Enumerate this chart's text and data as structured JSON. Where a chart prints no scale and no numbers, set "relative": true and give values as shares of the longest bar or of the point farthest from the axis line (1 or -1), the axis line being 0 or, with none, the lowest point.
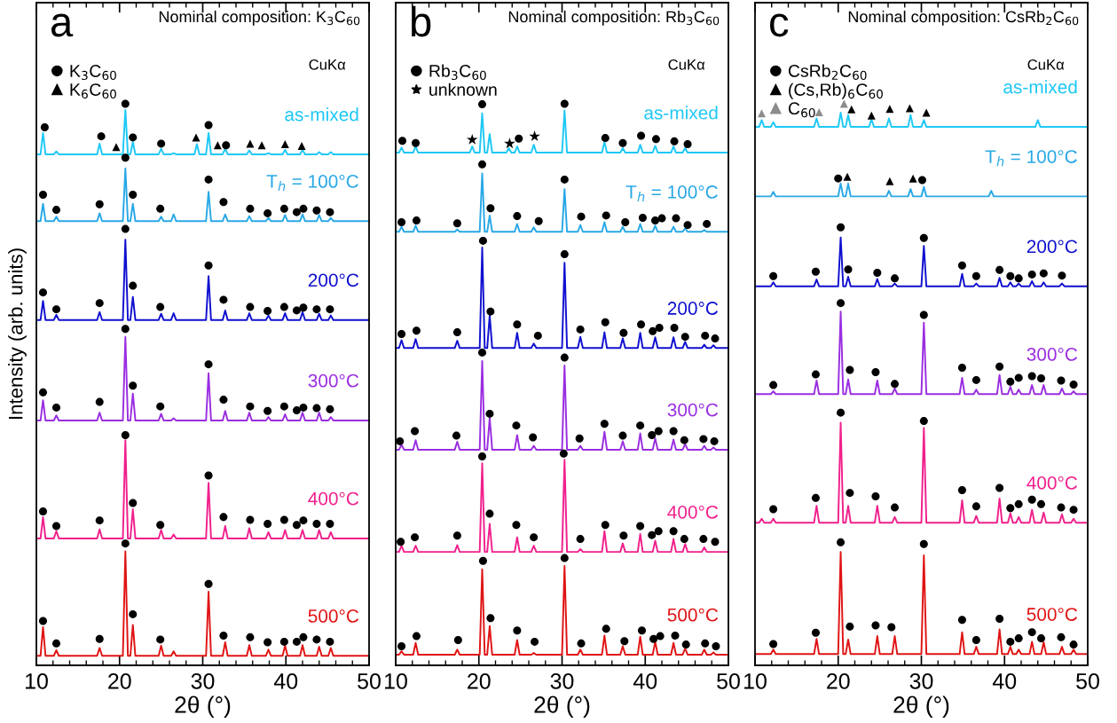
{
  "chart_data": [
    {
      "type": "line",
      "title": "Nominal composition: K$_{3}$C$_{60}$",
      "xlabel": "2θ (°)",
      "ylabel": "Intensity (arb. units)",
      "annotations": [
        "a",
        "CuKα"
      ],
      "relative": true,
      "xlim": [
        10,
        50
      ],
      "xticks": [
        10,
        20,
        30,
        40,
        50
      ],
      "legend": "top left",
      "x": [
        10,
        10.5,
        10.8,
        11.1,
        12.1,
        12.4,
        12.7,
        17.3,
        17.6,
        17.9,
        20.4,
        20.7,
        21.0,
        21.3,
        21.6,
        21.9,
        24.7,
        25.0,
        25.3,
        26.2,
        26.5,
        26.8,
        29.0,
        29.3,
        29.6,
        30.4,
        30.7,
        31.0,
        32.4,
        32.7,
        33.0,
        35.3,
        35.6,
        35.9,
        37.6,
        37.9,
        38.2,
        39.6,
        39.9,
        40.2,
        41.7,
        42.0,
        42.3,
        43.7,
        44.0,
        44.3,
        45.1,
        45.4,
        45.7,
        50
      ],
      "series": [
        {
          "name": "as-mixed",
          "color": "#1ec8f5",
          "values": [
            0.91,
            0.91,
            0.948,
            0.91,
            0.91,
            0.915,
            0.91,
            0.91,
            0.929,
            0.91,
            0.91,
            0.989,
            0.91,
            0.91,
            0.932,
            0.91,
            0.91,
            0.92,
            0.91,
            0.91,
            0.912,
            0.91,
            0.91,
            0.928,
            0.91,
            0.91,
            0.948,
            0.91,
            0.91,
            0.92,
            0.91,
            0.91,
            0.917,
            0.91,
            0.91,
            0.912,
            0.91,
            0.91,
            0.918,
            0.91,
            0.91,
            0.918,
            0.91,
            0.91,
            0.914,
            0.91,
            0.91,
            0.914,
            0.91,
            0.91
          ]
        },
        {
          "name": "T$_{h}$ = 100°C",
          "color": "#28a8e6",
          "values": [
            0.791,
            0.791,
            0.822,
            0.791,
            0.791,
            0.799,
            0.791,
            0.791,
            0.805,
            0.791,
            0.791,
            0.885,
            0.791,
            0.791,
            0.822,
            0.791,
            0.791,
            0.799,
            0.791,
            0.791,
            0.803,
            0.791,
            0.791,
            0.791,
            0.791,
            0.791,
            0.843,
            0.791,
            0.791,
            0.803,
            0.791,
            0.791,
            0.8,
            0.791,
            0.791,
            0.797,
            0.791,
            0.791,
            0.802,
            0.791,
            0.791,
            0.803,
            0.791,
            0.791,
            0.802,
            0.791,
            0.791,
            0.797,
            0.791,
            0.791
          ]
        },
        {
          "name": "200°C",
          "color": "#1010d0",
          "values": [
            0.615,
            0.615,
            0.649,
            0.615,
            0.615,
            0.624,
            0.615,
            0.615,
            0.629,
            0.615,
            0.615,
            0.758,
            0.615,
            0.615,
            0.656,
            0.615,
            0.615,
            0.626,
            0.615,
            0.615,
            0.627,
            0.615,
            0.615,
            0.615,
            0.615,
            0.615,
            0.693,
            0.615,
            0.615,
            0.632,
            0.615,
            0.615,
            0.627,
            0.615,
            0.615,
            0.623,
            0.615,
            0.615,
            0.627,
            0.615,
            0.615,
            0.629,
            0.615,
            0.615,
            0.626,
            0.615,
            0.615,
            0.623,
            0.615,
            0.615
          ]
        },
        {
          "name": "300°C",
          "color": "#9a2ee0",
          "values": [
            0.436,
            0.436,
            0.472,
            0.436,
            0.436,
            0.445,
            0.436,
            0.436,
            0.45,
            0.436,
            0.436,
            0.585,
            0.436,
            0.436,
            0.484,
            0.436,
            0.436,
            0.448,
            0.436,
            0.436,
            0.44,
            0.436,
            0.436,
            0.436,
            0.436,
            0.436,
            0.52,
            0.436,
            0.436,
            0.453,
            0.436,
            0.436,
            0.45,
            0.436,
            0.436,
            0.442,
            0.436,
            0.436,
            0.447,
            0.436,
            0.436,
            0.45,
            0.436,
            0.436,
            0.45,
            0.436,
            0.436,
            0.442,
            0.436,
            0.436
          ]
        },
        {
          "name": "400°C",
          "color": "#f0208c",
          "values": [
            0.226,
            0.226,
            0.264,
            0.226,
            0.226,
            0.239,
            0.226,
            0.226,
            0.242,
            0.226,
            0.226,
            0.401,
            0.226,
            0.226,
            0.278,
            0.226,
            0.226,
            0.241,
            0.226,
            0.226,
            0.233,
            0.226,
            0.226,
            0.226,
            0.226,
            0.226,
            0.325,
            0.226,
            0.226,
            0.248,
            0.226,
            0.226,
            0.244,
            0.226,
            0.226,
            0.237,
            0.226,
            0.226,
            0.241,
            0.226,
            0.226,
            0.241,
            0.226,
            0.226,
            0.241,
            0.226,
            0.226,
            0.237,
            0.226,
            0.226
          ]
        },
        {
          "name": "500°C",
          "color": "#e01414",
          "values": [
            0.017,
            0.017,
            0.068,
            0.017,
            0.017,
            0.027,
            0.017,
            0.017,
            0.031,
            0.017,
            0.017,
            0.203,
            0.017,
            0.017,
            0.072,
            0.017,
            0.017,
            0.035,
            0.017,
            0.017,
            0.025,
            0.017,
            0.017,
            0.017,
            0.017,
            0.017,
            0.131,
            0.017,
            0.017,
            0.041,
            0.017,
            0.017,
            0.036,
            0.017,
            0.017,
            0.028,
            0.017,
            0.017,
            0.035,
            0.017,
            0.017,
            0.036,
            0.017,
            0.017,
            0.033,
            0.017,
            0.017,
            0.031,
            0.017,
            0.017
          ]
        },
        {
          "type": "scatter",
          "name": "K$_{3}$C$_{60}$",
          "color": "#000000",
          "marker": "circle",
          "x": [
            11.0,
            17.8,
            20.7,
            21.6,
            25.0,
            30.7,
            32.8,
            10.8,
            12.4,
            17.6,
            20.7,
            21.6,
            24.9,
            30.7,
            32.5,
            35.7,
            37.8,
            39.8,
            41.3,
            42.1,
            43.7,
            45.3,
            10.8,
            12.4,
            17.6,
            20.7,
            21.6,
            24.9,
            30.7,
            32.5,
            35.7,
            37.8,
            39.8,
            41.3,
            42.1,
            43.7,
            45.3,
            10.8,
            12.4,
            17.6,
            20.7,
            21.6,
            24.9,
            30.7,
            32.5,
            35.7,
            37.8,
            39.8,
            41.3,
            42.1,
            43.7,
            45.3,
            10.8,
            12.4,
            17.6,
            20.7,
            21.6,
            24.9,
            30.7,
            32.5,
            35.7,
            37.8,
            39.8,
            41.3,
            42.1,
            43.7,
            45.3,
            10.8,
            12.4,
            17.6,
            20.7,
            21.6,
            24.9,
            30.7,
            32.5,
            35.7,
            37.8,
            39.8,
            41.3,
            42.1,
            43.7,
            45.3
          ],
          "values": [
            0.958,
            0.942,
            1.0,
            0.94,
            0.929,
            0.962,
            0.926,
            0.838,
            0.811,
            0.821,
            0.904,
            0.838,
            0.813,
            0.865,
            0.825,
            0.813,
            0.805,
            0.813,
            0.807,
            0.813,
            0.81,
            0.807,
            0.664,
            0.634,
            0.645,
            0.777,
            0.676,
            0.638,
            0.712,
            0.651,
            0.638,
            0.631,
            0.638,
            0.632,
            0.637,
            0.634,
            0.634,
            0.486,
            0.459,
            0.469,
            0.599,
            0.498,
            0.461,
            0.536,
            0.473,
            0.461,
            0.453,
            0.461,
            0.454,
            0.459,
            0.458,
            0.456,
            0.274,
            0.248,
            0.258,
            0.41,
            0.289,
            0.25,
            0.338,
            0.264,
            0.259,
            0.252,
            0.259,
            0.25,
            0.258,
            0.252,
            0.252,
            0.079,
            0.039,
            0.047,
            0.217,
            0.091,
            0.046,
            0.145,
            0.053,
            0.05,
            0.041,
            0.042,
            0.042,
            0.05,
            0.046,
            0.042
          ]
        },
        {
          "type": "scatter",
          "name": "K$_{6}$C$_{60}$",
          "color": "#000000",
          "marker": "triangle",
          "x": [
            19.6,
            29.2,
            31.8,
            35.7,
            37.1,
            39.9,
            41.9
          ],
          "values": [
            0.923,
            0.94,
            0.926,
            0.929,
            0.926,
            0.928,
            0.925
          ]
        }
      ]
    },
    {
      "type": "line",
      "title": "Nominal composition: Rb$_{3}$C$_{60}$",
      "xlabel": "2θ (°)",
      "annotations": [
        "b",
        "CuKα"
      ],
      "relative": true,
      "xlim": [
        10,
        50
      ],
      "xticks": [
        10,
        20,
        30,
        40,
        50
      ],
      "legend": "top left",
      "x": [
        10,
        10.4,
        10.7,
        11.0,
        12.1,
        12.4,
        12.7,
        17.1,
        17.4,
        17.7,
        18.9,
        19.2,
        19.5,
        20.1,
        20.4,
        20.7,
        21.0,
        21.3,
        21.6,
        23.3,
        23.6,
        23.9,
        24.3,
        24.6,
        24.9,
        26.3,
        26.6,
        26.9,
        30.0,
        30.3,
        30.6,
        31.9,
        32.2,
        32.5,
        34.8,
        35.1,
        35.4,
        37.0,
        37.3,
        37.6,
        39.1,
        39.4,
        39.7,
        40.9,
        41.2,
        41.5,
        43.1,
        43.4,
        43.7,
        44.5,
        44.8,
        45.1,
        46.8,
        47.1,
        47.4,
        47.9,
        48.2,
        48.5,
        50
      ],
      "series": [
        {
          "name": "as-mixed",
          "color": "#1ec8f5",
          "values": [
            0.913,
            0.913,
            0.922,
            0.913,
            0.913,
            0.924,
            0.913,
            0.913,
            0.913,
            0.913,
            0.913,
            0.924,
            0.913,
            0.913,
            0.983,
            0.913,
            0.913,
            0.946,
            0.913,
            0.913,
            0.921,
            0.913,
            0.913,
            0.924,
            0.913,
            0.913,
            0.927,
            0.913,
            0.913,
            0.988,
            0.913,
            0.913,
            0.913,
            0.913,
            0.913,
            0.932,
            0.913,
            0.913,
            0.921,
            0.913,
            0.913,
            0.927,
            0.913,
            0.913,
            0.925,
            0.913,
            0.913,
            0.924,
            0.913,
            0.913,
            0.921,
            0.913,
            0.913,
            0.913,
            0.913,
            0.913,
            0.913,
            0.913,
            0.913
          ]
        },
        {
          "name": "T$_{h}$ = 100°C",
          "color": "#28a8e6",
          "values": [
            0.772,
            0.772,
            0.781,
            0.772,
            0.772,
            0.783,
            0.772,
            0.772,
            0.776,
            0.772,
            0.772,
            0.772,
            0.772,
            0.772,
            0.876,
            0.772,
            0.772,
            0.801,
            0.772,
            0.772,
            0.772,
            0.772,
            0.772,
            0.786,
            0.772,
            0.772,
            0.78,
            0.772,
            0.772,
            0.848,
            0.772,
            0.772,
            0.784,
            0.772,
            0.772,
            0.789,
            0.772,
            0.772,
            0.781,
            0.772,
            0.772,
            0.786,
            0.772,
            0.772,
            0.783,
            0.772,
            0.772,
            0.781,
            0.772,
            0.772,
            0.778,
            0.772,
            0.772,
            0.775,
            0.772,
            0.772,
            0.772,
            0.772,
            0.772
          ]
        },
        {
          "name": "200°C",
          "color": "#1010d0",
          "values": [
            0.565,
            0.565,
            0.579,
            0.565,
            0.565,
            0.581,
            0.565,
            0.565,
            0.578,
            0.565,
            0.565,
            0.565,
            0.565,
            0.565,
            0.744,
            0.565,
            0.565,
            0.623,
            0.565,
            0.565,
            0.565,
            0.565,
            0.565,
            0.592,
            0.565,
            0.565,
            0.573,
            0.565,
            0.565,
            0.717,
            0.565,
            0.565,
            0.585,
            0.565,
            0.565,
            0.593,
            0.565,
            0.565,
            0.582,
            0.565,
            0.565,
            0.592,
            0.565,
            0.565,
            0.584,
            0.565,
            0.565,
            0.584,
            0.565,
            0.565,
            0.576,
            0.565,
            0.565,
            0.571,
            0.565,
            0.565,
            0.57,
            0.565,
            0.565
          ]
        },
        {
          "name": "300°C",
          "color": "#9a2ee0",
          "values": [
            0.384,
            0.384,
            0.393,
            0.384,
            0.384,
            0.401,
            0.384,
            0.384,
            0.398,
            0.384,
            0.384,
            0.384,
            0.384,
            0.384,
            0.542,
            0.384,
            0.384,
            0.441,
            0.384,
            0.384,
            0.384,
            0.384,
            0.384,
            0.41,
            0.384,
            0.384,
            0.391,
            0.384,
            0.384,
            0.534,
            0.384,
            0.384,
            0.391,
            0.384,
            0.384,
            0.416,
            0.384,
            0.384,
            0.399,
            0.384,
            0.384,
            0.413,
            0.384,
            0.384,
            0.404,
            0.384,
            0.384,
            0.402,
            0.384,
            0.384,
            0.394,
            0.384,
            0.384,
            0.391,
            0.384,
            0.384,
            0.388,
            0.384,
            0.384
          ]
        },
        {
          "name": "400°C",
          "color": "#f0208c",
          "values": [
            0.202,
            0.202,
            0.213,
            0.202,
            0.202,
            0.213,
            0.202,
            0.202,
            0.214,
            0.202,
            0.202,
            0.202,
            0.202,
            0.202,
            0.36,
            0.202,
            0.202,
            0.252,
            0.202,
            0.202,
            0.202,
            0.202,
            0.202,
            0.228,
            0.202,
            0.202,
            0.213,
            0.202,
            0.202,
            0.366,
            0.202,
            0.202,
            0.207,
            0.202,
            0.202,
            0.239,
            0.202,
            0.202,
            0.217,
            0.202,
            0.202,
            0.234,
            0.202,
            0.202,
            0.222,
            0.202,
            0.202,
            0.225,
            0.202,
            0.202,
            0.216,
            0.202,
            0.202,
            0.21,
            0.202,
            0.202,
            0.202,
            0.202,
            0.202
          ]
        },
        {
          "name": "500°C",
          "color": "#e01414",
          "values": [
            0.019,
            0.019,
            0.025,
            0.019,
            0.019,
            0.04,
            0.019,
            0.019,
            0.028,
            0.019,
            0.019,
            0.019,
            0.019,
            0.019,
            0.171,
            0.019,
            0.019,
            0.07,
            0.019,
            0.019,
            0.019,
            0.019,
            0.019,
            0.045,
            0.019,
            0.019,
            0.022,
            0.019,
            0.019,
            0.177,
            0.019,
            0.019,
            0.028,
            0.019,
            0.019,
            0.053,
            0.019,
            0.019,
            0.034,
            0.019,
            0.019,
            0.051,
            0.019,
            0.019,
            0.042,
            0.019,
            0.019,
            0.04,
            0.019,
            0.019,
            0.03,
            0.019,
            0.019,
            0.028,
            0.019,
            0.019,
            0.023,
            0.019,
            0.019
          ]
        },
        {
          "type": "scatter",
          "name": "Rb$_{3}$C$_{60}$",
          "color": "#000000",
          "marker": "circle",
          "x": [
            10.8,
            12.4,
            20.4,
            24.8,
            30.3,
            35.2,
            37.3,
            39.5,
            41.3,
            43.5,
            45.1,
            10.7,
            12.5,
            17.4,
            20.4,
            21.4,
            24.6,
            27.2,
            30.3,
            32.3,
            35.3,
            37.6,
            39.7,
            41.2,
            42.0,
            43.7,
            45.1,
            47.4,
            10.7,
            12.5,
            17.4,
            20.5,
            21.4,
            24.6,
            27.1,
            30.3,
            32.2,
            35.2,
            37.4,
            39.5,
            40.9,
            41.7,
            43.5,
            44.8,
            47.2,
            48.4,
            10.5,
            12.3,
            17.3,
            20.4,
            21.3,
            24.5,
            26.5,
            30.3,
            32.1,
            35.1,
            37.3,
            39.4,
            40.8,
            41.6,
            43.4,
            44.7,
            47.0,
            48.3,
            10.6,
            12.3,
            17.4,
            20.4,
            21.3,
            24.5,
            26.6,
            30.2,
            32.2,
            35.2,
            37.4,
            39.4,
            40.8,
            41.6,
            43.4,
            44.7,
            47.0,
            48.4,
            10.7,
            12.5,
            17.5,
            20.5,
            21.4,
            24.6,
            26.7,
            30.3,
            32.3,
            35.3,
            37.5,
            39.6,
            41.0,
            41.8,
            43.6,
            44.9,
            47.2,
            48.5
          ],
          "values": [
            0.934,
            0.93,
            0.999,
            0.938,
            1.0,
            0.939,
            0.93,
            0.943,
            0.937,
            0.933,
            0.928,
            0.789,
            0.792,
            0.787,
            0.892,
            0.814,
            0.8,
            0.791,
            0.865,
            0.799,
            0.801,
            0.789,
            0.797,
            0.792,
            0.796,
            0.796,
            0.784,
            0.786,
            0.59,
            0.596,
            0.593,
            0.756,
            0.63,
            0.607,
            0.587,
            0.732,
            0.598,
            0.611,
            0.592,
            0.607,
            0.595,
            0.601,
            0.601,
            0.585,
            0.587,
            0.582,
            0.399,
            0.417,
            0.409,
            0.557,
            0.448,
            0.427,
            0.406,
            0.548,
            0.404,
            0.43,
            0.409,
            0.427,
            0.41,
            0.417,
            0.417,
            0.401,
            0.403,
            0.399,
            0.22,
            0.228,
            0.231,
            0.372,
            0.27,
            0.25,
            0.228,
            0.377,
            0.225,
            0.25,
            0.231,
            0.248,
            0.232,
            0.239,
            0.239,
            0.225,
            0.225,
            0.22,
            0.034,
            0.052,
            0.045,
            0.186,
            0.084,
            0.062,
            0.042,
            0.191,
            0.039,
            0.065,
            0.043,
            0.062,
            0.047,
            0.052,
            0.053,
            0.037,
            0.039,
            0.034
          ]
        },
        {
          "type": "scatter",
          "name": "unknown",
          "color": "#000000",
          "marker": "star",
          "x": [
            19.2,
            23.7,
            26.7
          ],
          "values": [
            0.936,
            0.929,
            0.942
          ]
        }
      ]
    },
    {
      "type": "line",
      "title": "Nominal composition: CsRb$_{2}$C$_{60}$",
      "xlabel": "2θ (°)",
      "annotations": [
        "c",
        "CuKα"
      ],
      "relative": true,
      "xlim": [
        10,
        50
      ],
      "xticks": [
        10,
        20,
        30,
        40,
        50
      ],
      "legend": "top left",
      "x": [
        10,
        10.5,
        10.8,
        11.1,
        11.9,
        12.2,
        12.5,
        17.1,
        17.4,
        17.7,
        20.0,
        20.3,
        20.6,
        20.9,
        21.2,
        21.5,
        23.7,
        24.0,
        24.3,
        24.4,
        24.7,
        25.0,
        25.8,
        26.1,
        26.4,
        26.5,
        26.8,
        27.1,
        28.4,
        28.7,
        29.0,
        30.0,
        30.3,
        30.6,
        34.6,
        34.9,
        35.2,
        36.3,
        36.6,
        36.9,
        38.1,
        38.4,
        38.7,
        39.1,
        39.4,
        39.7,
        40.4,
        40.7,
        41.0,
        41.4,
        41.7,
        42.0,
        43.0,
        43.3,
        43.6,
        43.7,
        44.0,
        44.3,
        44.4,
        44.7,
        45.0,
        46.6,
        46.9,
        47.2,
        48.0,
        48.3,
        48.6,
        50
      ],
      "series": [
        {
          "name": "as-mixed",
          "color": "#1ec8f5",
          "values": [
            0.959,
            0.959,
            0.971,
            0.959,
            0.959,
            0.967,
            0.959,
            0.959,
            0.974,
            0.959,
            0.959,
            0.984,
            0.959,
            0.959,
            0.98,
            0.959,
            0.959,
            0.972,
            0.959,
            0.959,
            0.959,
            0.959,
            0.959,
            0.974,
            0.959,
            0.959,
            0.959,
            0.959,
            0.959,
            0.98,
            0.959,
            0.959,
            0.971,
            0.959,
            0.959,
            0.959,
            0.959,
            0.959,
            0.959,
            0.959,
            0.959,
            0.959,
            0.959,
            0.959,
            0.959,
            0.959,
            0.959,
            0.959,
            0.959,
            0.959,
            0.959,
            0.959,
            0.959,
            0.959,
            0.959,
            0.959,
            0.971,
            0.959,
            0.959,
            0.959,
            0.959,
            0.959,
            0.959,
            0.959,
            0.959,
            0.959,
            0.959,
            0.959
          ]
        },
        {
          "name": "T$_{h}$ = 100°C",
          "color": "#28a8e6",
          "values": [
            0.835,
            0.835,
            0.835,
            0.835,
            0.835,
            0.843,
            0.835,
            0.835,
            0.835,
            0.835,
            0.835,
            0.858,
            0.835,
            0.835,
            0.858,
            0.835,
            0.835,
            0.835,
            0.835,
            0.835,
            0.835,
            0.835,
            0.835,
            0.845,
            0.835,
            0.835,
            0.835,
            0.835,
            0.835,
            0.848,
            0.835,
            0.835,
            0.852,
            0.835,
            0.835,
            0.835,
            0.835,
            0.835,
            0.835,
            0.835,
            0.835,
            0.845,
            0.835,
            0.835,
            0.835,
            0.835,
            0.835,
            0.835,
            0.835,
            0.835,
            0.835,
            0.835,
            0.835,
            0.835,
            0.835,
            0.835,
            0.835,
            0.835,
            0.835,
            0.835,
            0.835,
            0.835,
            0.835,
            0.835,
            0.835,
            0.835,
            0.835,
            0.835
          ]
        },
        {
          "name": "200°C",
          "color": "#1010d0",
          "values": [
            0.675,
            0.675,
            0.675,
            0.675,
            0.675,
            0.682,
            0.675,
            0.675,
            0.687,
            0.675,
            0.675,
            0.762,
            0.675,
            0.675,
            0.692,
            0.675,
            0.675,
            0.675,
            0.675,
            0.675,
            0.688,
            0.675,
            0.675,
            0.675,
            0.675,
            0.675,
            0.68,
            0.675,
            0.675,
            0.675,
            0.675,
            0.675,
            0.747,
            0.675,
            0.675,
            0.697,
            0.675,
            0.675,
            0.68,
            0.675,
            0.675,
            0.675,
            0.675,
            0.675,
            0.69,
            0.675,
            0.675,
            0.682,
            0.675,
            0.675,
            0.68,
            0.675,
            0.675,
            0.684,
            0.675,
            0.675,
            0.675,
            0.675,
            0.675,
            0.682,
            0.675,
            0.675,
            0.68,
            0.675,
            0.675,
            0.675,
            0.675,
            0.675
          ]
        },
        {
          "name": "300°C",
          "color": "#9a2ee0",
          "values": [
            0.483,
            0.483,
            0.483,
            0.483,
            0.483,
            0.488,
            0.483,
            0.483,
            0.507,
            0.483,
            0.483,
            0.63,
            0.483,
            0.483,
            0.509,
            0.483,
            0.483,
            0.483,
            0.483,
            0.483,
            0.507,
            0.483,
            0.483,
            0.483,
            0.483,
            0.483,
            0.493,
            0.483,
            0.483,
            0.483,
            0.483,
            0.483,
            0.61,
            0.483,
            0.483,
            0.512,
            0.483,
            0.483,
            0.491,
            0.483,
            0.483,
            0.483,
            0.483,
            0.483,
            0.517,
            0.483,
            0.483,
            0.496,
            0.483,
            0.483,
            0.491,
            0.483,
            0.483,
            0.499,
            0.483,
            0.483,
            0.483,
            0.483,
            0.483,
            0.499,
            0.483,
            0.483,
            0.493,
            0.483,
            0.483,
            0.488,
            0.483,
            0.483
          ]
        },
        {
          "name": "400°C",
          "color": "#f0208c",
          "values": [
            0.254,
            0.254,
            0.261,
            0.254,
            0.254,
            0.261,
            0.254,
            0.254,
            0.284,
            0.254,
            0.254,
            0.432,
            0.254,
            0.254,
            0.284,
            0.254,
            0.254,
            0.254,
            0.254,
            0.254,
            0.284,
            0.254,
            0.254,
            0.254,
            0.254,
            0.254,
            0.264,
            0.254,
            0.254,
            0.254,
            0.254,
            0.254,
            0.423,
            0.254,
            0.254,
            0.294,
            0.254,
            0.254,
            0.266,
            0.254,
            0.254,
            0.254,
            0.254,
            0.254,
            0.297,
            0.254,
            0.254,
            0.271,
            0.254,
            0.254,
            0.264,
            0.254,
            0.254,
            0.277,
            0.254,
            0.254,
            0.254,
            0.254,
            0.254,
            0.272,
            0.254,
            0.254,
            0.269,
            0.254,
            0.254,
            0.261,
            0.254,
            0.254
          ]
        },
        {
          "name": "500°C",
          "color": "#e01414",
          "values": [
            0.02,
            0.02,
            0.02,
            0.02,
            0.02,
            0.028,
            0.02,
            0.02,
            0.047,
            0.02,
            0.02,
            0.202,
            0.02,
            0.02,
            0.046,
            0.02,
            0.02,
            0.02,
            0.02,
            0.02,
            0.052,
            0.02,
            0.02,
            0.02,
            0.02,
            0.02,
            0.052,
            0.02,
            0.02,
            0.02,
            0.02,
            0.02,
            0.196,
            0.02,
            0.02,
            0.059,
            0.02,
            0.02,
            0.033,
            0.02,
            0.02,
            0.02,
            0.02,
            0.02,
            0.064,
            0.02,
            0.02,
            0.033,
            0.02,
            0.02,
            0.028,
            0.02,
            0.02,
            0.042,
            0.02,
            0.02,
            0.02,
            0.02,
            0.02,
            0.041,
            0.02,
            0.02,
            0.033,
            0.02,
            0.02,
            0.028,
            0.02,
            0.02
          ]
        },
        {
          "type": "scatter",
          "name": "CsRb$_{2}$C$_{60}$",
          "color": "#000000",
          "marker": "circle",
          "x": [
            20.0,
            30.1,
            12.2,
            17.3,
            20.3,
            21.2,
            24.7,
            26.8,
            30.3,
            34.9,
            36.6,
            39.4,
            40.7,
            41.7,
            43.3,
            44.7,
            46.9,
            12.2,
            17.3,
            20.3,
            21.4,
            24.5,
            26.8,
            30.3,
            34.9,
            36.6,
            39.4,
            40.7,
            41.7,
            43.3,
            44.4,
            46.8,
            48.3,
            12.2,
            17.3,
            20.3,
            21.4,
            24.5,
            26.8,
            30.3,
            34.9,
            36.6,
            39.4,
            40.7,
            41.7,
            43.3,
            44.4,
            46.8,
            48.3,
            12.2,
            17.3,
            20.3,
            21.4,
            24.5,
            26.4,
            30.3,
            34.9,
            36.6,
            39.4,
            40.7,
            41.7,
            43.3,
            44.4,
            46.8,
            48.3
          ],
          "values": [
            0.867,
            0.864,
            0.693,
            0.701,
            0.78,
            0.705,
            0.699,
            0.689,
            0.761,
            0.712,
            0.693,
            0.704,
            0.693,
            0.689,
            0.696,
            0.698,
            0.694,
            0.499,
            0.518,
            0.645,
            0.526,
            0.522,
            0.501,
            0.624,
            0.53,
            0.508,
            0.532,
            0.505,
            0.512,
            0.515,
            0.511,
            0.507,
            0.5,
            0.278,
            0.298,
            0.45,
            0.307,
            0.301,
            0.281,
            0.435,
            0.312,
            0.283,
            0.316,
            0.28,
            0.287,
            0.295,
            0.287,
            0.281,
            0.277,
            0.038,
            0.058,
            0.219,
            0.069,
            0.071,
            0.068,
            0.216,
            0.081,
            0.045,
            0.083,
            0.042,
            0.048,
            0.059,
            0.048,
            0.05,
            0.037
          ]
        },
        {
          "type": "scatter",
          "name": "(Cs,Rb)$_{6}$C$_{60}$",
          "color": "#000000",
          "marker": "triangle",
          "x": [
            21.6,
            24.0,
            26.2,
            28.6,
            30.6,
            21.1,
            26.2,
            29.0
          ],
          "values": [
            0.99,
            0.979,
            0.991,
            0.992,
            0.984,
            0.87,
            0.862,
            0.867
          ]
        },
        {
          "type": "scatter",
          "name": "C$_{60}$",
          "color": "#8c8c8c",
          "marker": "triangle",
          "x": [
            10.8,
            17.7,
            20.7
          ],
          "values": [
            0.983,
            0.985,
            1.0
          ]
        }
      ]
    }
  ]
}
